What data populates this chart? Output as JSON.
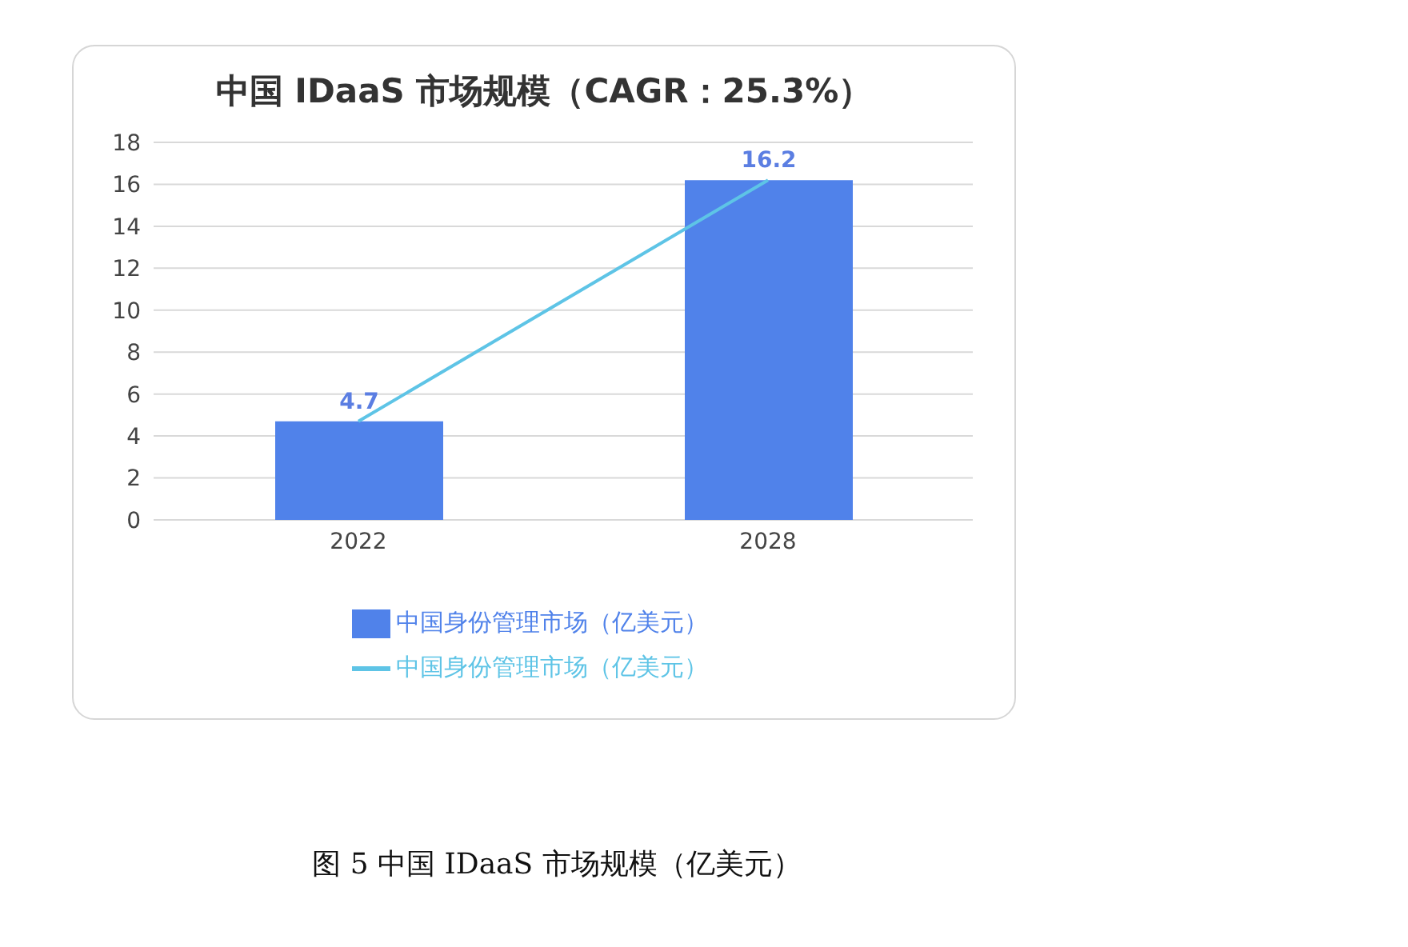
{
  "chart_data": {
    "type": "bar",
    "title": "中国 IDaaS 市场规模（CAGR：25.3%）",
    "categories": [
      "2022",
      "2028"
    ],
    "series": [
      {
        "name": "中国身份管理市场（亿美元）",
        "color": "#5082ea",
        "values": [
          4.7,
          16.2
        ],
        "value_labels": [
          "4.7",
          "16.2"
        ]
      },
      {
        "name": "中国身份管理市场（亿美元）",
        "type": "line",
        "color": "#5ec4e6",
        "values": [
          4.7,
          16.2
        ]
      }
    ],
    "ylim": [
      0,
      18
    ],
    "yticks": [
      0,
      2,
      4,
      6,
      8,
      10,
      12,
      14,
      16,
      18
    ],
    "grid": "y",
    "legend": "bottom",
    "marker": "none",
    "annotations": [
      "图 5 中国 IDaaS 市场规模（亿美元）"
    ]
  }
}
